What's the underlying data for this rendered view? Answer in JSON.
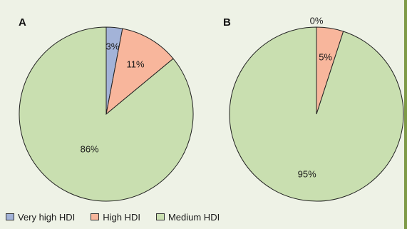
{
  "chart_data": [
    {
      "type": "pie",
      "panel": "A",
      "categories": [
        "Very high HDI",
        "High HDI",
        "Medium HDI"
      ],
      "values": [
        3,
        11,
        86
      ],
      "labels": [
        "3%",
        "11%",
        "86%"
      ]
    },
    {
      "type": "pie",
      "panel": "B",
      "categories": [
        "Very high HDI",
        "High HDI",
        "Medium HDI"
      ],
      "values": [
        0,
        5,
        95
      ],
      "labels": [
        "0%",
        "5%",
        "95%"
      ]
    }
  ],
  "legend": {
    "placement": "bottom-left",
    "items": [
      {
        "label": "Very high HDI",
        "color": "#a3b3d8"
      },
      {
        "label": "High HDI",
        "color": "#f8b69c"
      },
      {
        "label": "Medium HDI",
        "color": "#c9dfb0"
      }
    ]
  }
}
